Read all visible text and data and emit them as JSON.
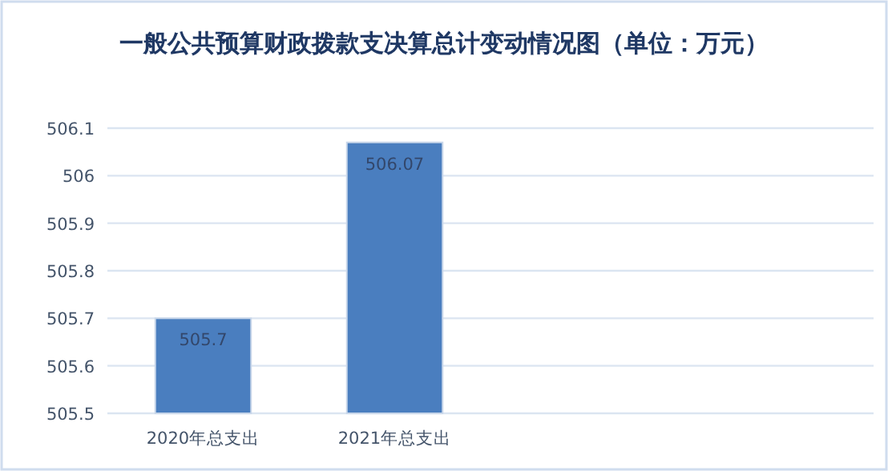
{
  "chart_data": {
    "type": "bar",
    "title": "一般公共预算财政拨款支决算总计变动情况图（单位：万元）",
    "categories": [
      "2020年总支出",
      "2021年总支出",
      null,
      null
    ],
    "values": [
      505.7,
      506.07,
      null,
      null
    ],
    "color": "#4a7ebf",
    "ylim": [
      505.5,
      506.1
    ],
    "yticks": [
      505.5,
      505.6,
      505.7,
      505.8,
      505.9,
      506,
      506.1
    ],
    "grid": "y",
    "data_labels": true
  }
}
